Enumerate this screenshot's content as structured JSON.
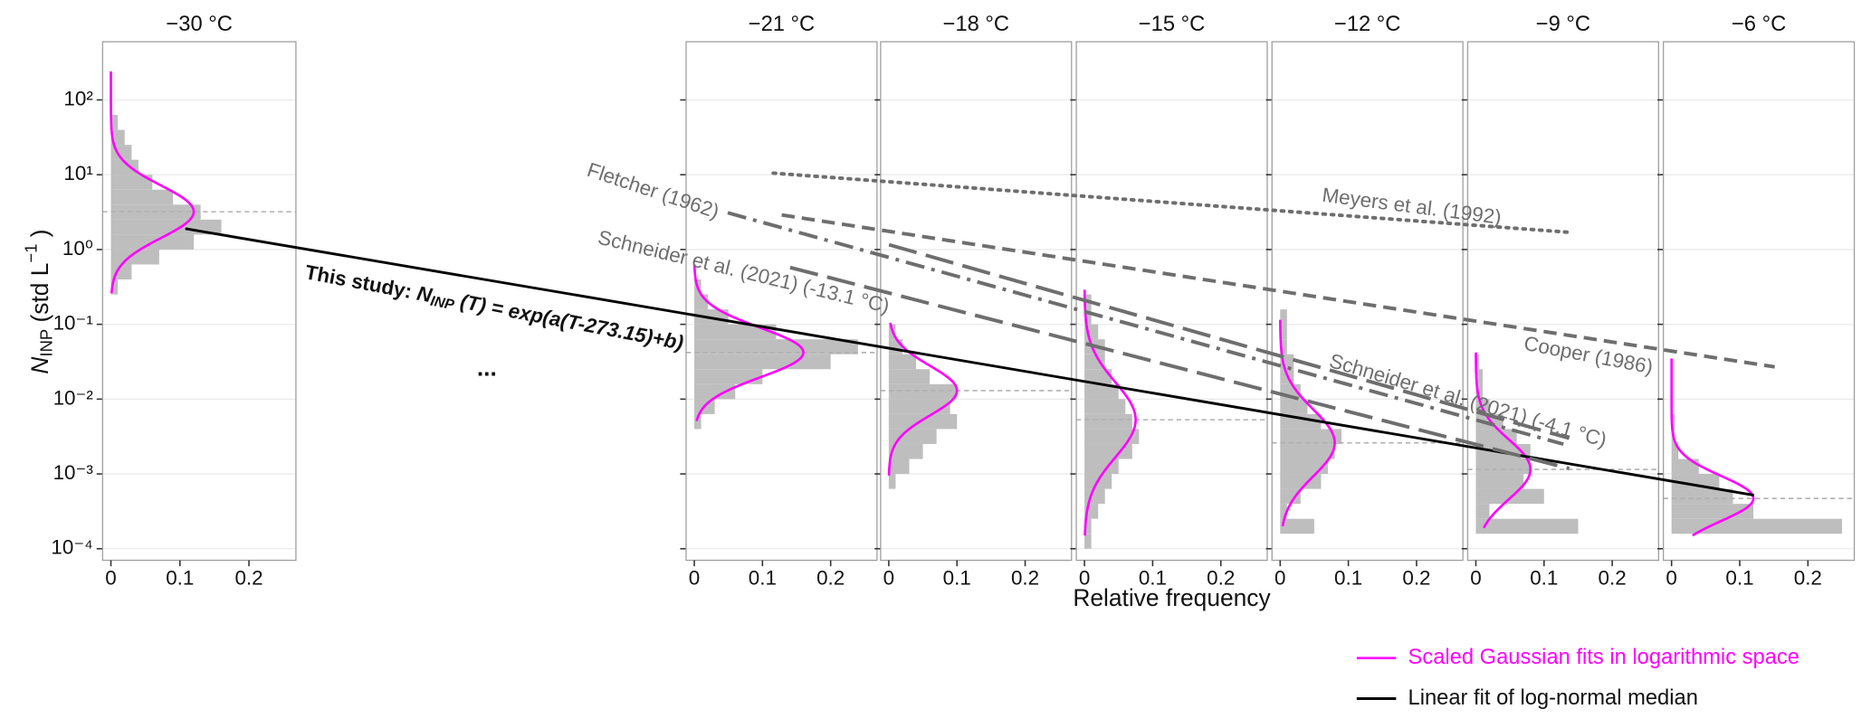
{
  "chart_data": [
    {
      "type": "histogram",
      "title": "−30 °C",
      "xlim": [
        -0.012,
        0.268
      ],
      "xticks": [
        0,
        0.1,
        0.2
      ],
      "bins": [
        0.251,
        0.398,
        0.631,
        1,
        1.585,
        2.512,
        3.981,
        6.31,
        10,
        15.85,
        25.12,
        39.81,
        63.1
      ],
      "values": [
        0.01,
        0.03,
        0.07,
        0.12,
        0.16,
        0.13,
        0.09,
        0.06,
        0.04,
        0.03,
        0.02,
        0.01
      ],
      "color": "#bebebe",
      "fit_median": 3.2,
      "fit_gsd": 2.24,
      "fit_peak": 0.12,
      "fit_range": [
        0.26,
        240
      ]
    },
    {
      "type": "histogram",
      "title": "−21 °C",
      "xlim": [
        -0.012,
        0.268
      ],
      "xticks": [
        0,
        0.1,
        0.2
      ],
      "bins": [
        0.00398,
        0.00631,
        0.01,
        0.01585,
        0.02512,
        0.03981,
        0.0631,
        0.1,
        0.1585,
        0.2512,
        0.3981
      ],
      "values": [
        0.01,
        0.03,
        0.06,
        0.1,
        0.2,
        0.24,
        0.12,
        0.05,
        0.02,
        0.01
      ],
      "color": "#bebebe",
      "fit_median": 0.042,
      "fit_gsd": 2.14,
      "fit_peak": 0.16,
      "fit_range": [
        0.0051,
        0.63
      ]
    },
    {
      "type": "histogram",
      "title": "−18 °C",
      "xlim": [
        -0.012,
        0.268
      ],
      "xticks": [
        0,
        0.1,
        0.2
      ],
      "bins": [
        0.000631,
        0.001,
        0.001585,
        0.002512,
        0.003981,
        0.00631,
        0.01,
        0.01585,
        0.02512,
        0.03981,
        0.0631,
        0.1
      ],
      "values": [
        0.01,
        0.03,
        0.05,
        0.07,
        0.1,
        0.09,
        0.1,
        0.06,
        0.04,
        0.02,
        0.01
      ],
      "color": "#bebebe",
      "fit_median": 0.013,
      "fit_gsd": 2.14,
      "fit_peak": 0.1,
      "fit_range": [
        0.00095,
        0.105
      ]
    },
    {
      "type": "histogram",
      "title": "−15 °C",
      "xlim": [
        -0.012,
        0.268
      ],
      "xticks": [
        0,
        0.1,
        0.2
      ],
      "bins": [
        0.0001,
        0.0001585,
        0.0002512,
        0.0003981,
        0.000631,
        0.001,
        0.001585,
        0.002512,
        0.003981,
        0.00631,
        0.01,
        0.01585,
        0.02512,
        0.03981,
        0.0631,
        0.1,
        0.1585,
        0.2512
      ],
      "values": [
        0.01,
        0.01,
        0.02,
        0.03,
        0.04,
        0.05,
        0.07,
        0.08,
        0.07,
        0.06,
        0.05,
        0.04,
        0.03,
        0.03,
        0.02,
        0.01,
        0.01
      ],
      "color": "#bebebe",
      "fit_median": 0.0053,
      "fit_gsd": 3.16,
      "fit_peak": 0.075,
      "fit_range": [
        0.00015,
        0.29
      ]
    },
    {
      "type": "histogram",
      "title": "−12 °C",
      "xlim": [
        -0.012,
        0.268
      ],
      "xticks": [
        0,
        0.1,
        0.2
      ],
      "bins": [
        0.0001585,
        0.0002512,
        0.0003981,
        0.000631,
        0.001,
        0.001585,
        0.002512,
        0.003981,
        0.00631,
        0.01,
        0.01585,
        0.02512,
        0.03981,
        0.0631,
        0.1,
        0.1585
      ],
      "values": [
        0.05,
        0.01,
        0.03,
        0.06,
        0.07,
        0.08,
        0.09,
        0.06,
        0.04,
        0.03,
        0.02,
        0.02,
        0.01,
        0.01,
        0.01
      ],
      "color": "#bebebe",
      "fit_median": 0.0026,
      "fit_gsd": 2.8,
      "fit_peak": 0.08,
      "fit_range": [
        0.0002,
        0.115
      ]
    },
    {
      "type": "histogram",
      "title": "−9 °C",
      "xlim": [
        -0.012,
        0.268
      ],
      "xticks": [
        0,
        0.1,
        0.2
      ],
      "bins": [
        0.0001585,
        0.0002512,
        0.0003981,
        0.000631,
        0.001,
        0.001585,
        0.002512,
        0.003981,
        0.00631,
        0.01,
        0.01585,
        0.02512,
        0.03981
      ],
      "values": [
        0.15,
        0.02,
        0.1,
        0.07,
        0.08,
        0.08,
        0.06,
        0.04,
        0.02,
        0.01,
        0.01,
        0.005
      ],
      "color": "#bebebe",
      "fit_median": 0.00115,
      "fit_gsd": 2.5,
      "fit_peak": 0.08,
      "fit_range": [
        0.00019,
        0.042
      ]
    },
    {
      "type": "histogram",
      "title": "−6 °C",
      "xlim": [
        -0.012,
        0.268
      ],
      "xticks": [
        0,
        0.1,
        0.2
      ],
      "bins": [
        0.0001585,
        0.0002512,
        0.0003981,
        0.000631,
        0.001,
        0.001585,
        0.002512,
        0.003981,
        0.00631
      ],
      "values": [
        0.25,
        0.12,
        0.09,
        0.07,
        0.04,
        0.01,
        0.005,
        0.005
      ],
      "color": "#bebebe",
      "fit_median": 0.00047,
      "fit_gsd": 2.0,
      "fit_peak": 0.12,
      "fit_range": [
        0.00015,
        0.035
      ]
    },
    {
      "type": "line",
      "xlim": [
        -33.02,
        -4.25
      ],
      "ylim": [
        7e-05,
        600
      ],
      "log_y": true,
      "grid": true,
      "yticks": [
        {
          "value": 0.0001,
          "label": "10⁻⁴"
        },
        {
          "value": 0.001,
          "label": "10⁻³"
        },
        {
          "value": 0.01,
          "label": "10⁻²"
        },
        {
          "value": 0.1,
          "label": "10⁻¹"
        },
        {
          "value": 1,
          "label": "10⁰"
        },
        {
          "value": 10,
          "label": "10¹"
        },
        {
          "value": 100,
          "label": "10²"
        }
      ],
      "ylabel": {
        "symbol": "N",
        "subscript": "INP",
        "unit": " (std L",
        "exponent": "−1",
        "close": " )"
      },
      "xlabel": "Relative frequency",
      "ellipsis": "...",
      "annotation": {
        "prefix": "This study: ",
        "symbol": "N",
        "subscript": "INP",
        "formula": " (T) = exp(a(T-273.15)+b)"
      },
      "fit_legend": {
        "name": "Scaled Gaussian fits in logarithmic space",
        "color": "#ff00ff"
      },
      "series": [
        {
          "name": "Linear fit of log-normal median",
          "color": "#000000",
          "dash": "solid",
          "in_legend": true,
          "x": [
            -30.17,
            -6.05
          ],
          "values": [
            1.9,
            0.00052
          ]
        },
        {
          "name": "Meyers et al. (1992)",
          "color": "#6e6e6e",
          "dash": "dotted",
          "x": [
            -21.13,
            -8.89
          ],
          "values": [
            10.5,
            1.7
          ]
        },
        {
          "name": "Fletcher (1962)",
          "color": "#6e6e6e",
          "dash": "dashdot",
          "x": [
            -21.83,
            -8.98
          ],
          "values": [
            3.1,
            0.0025
          ]
        },
        {
          "name": "Cooper (1986)",
          "color": "#6e6e6e",
          "dash": "dashed",
          "x": [
            -21,
            -5.73
          ],
          "values": [
            2.9,
            0.027
          ]
        },
        {
          "name": "Schneider et al. (2021) (-13.1 °C)",
          "color": "#6e6e6e",
          "dash": "longdash",
          "x": [
            -20.87,
            -8.89
          ],
          "values": [
            0.575,
            0.00118
          ]
        },
        {
          "name": "Schneider et al. (2021) (-4.1 °C)",
          "color": "#6e6e6e",
          "dash": "longdash",
          "x": [
            -19.35,
            -8.89
          ],
          "values": [
            1.16,
            0.003
          ]
        }
      ]
    }
  ]
}
